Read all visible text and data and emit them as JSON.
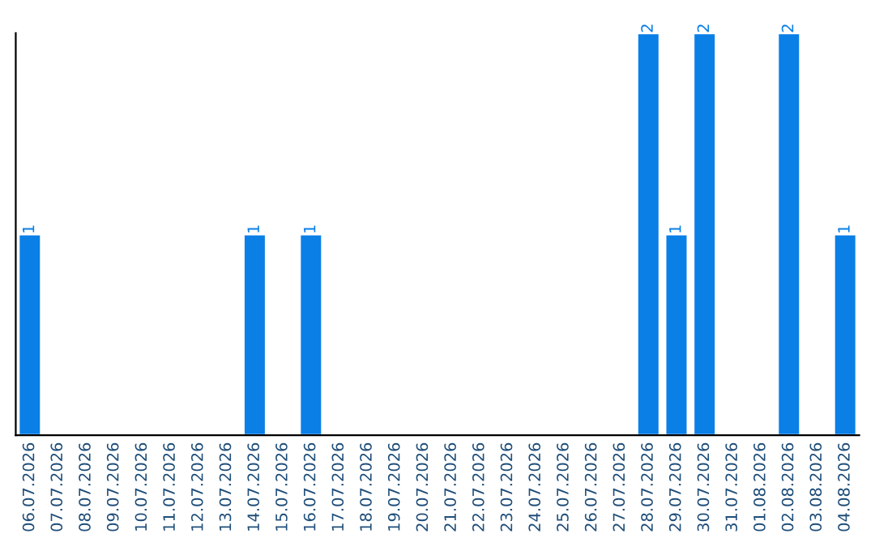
{
  "chart_data": {
    "type": "bar",
    "categories": [
      "06.07.2026",
      "07.07.2026",
      "08.07.2026",
      "09.07.2026",
      "10.07.2026",
      "11.07.2026",
      "12.07.2026",
      "13.07.2026",
      "14.07.2026",
      "15.07.2026",
      "16.07.2026",
      "17.07.2026",
      "18.07.2026",
      "19.07.2026",
      "20.07.2026",
      "21.07.2026",
      "22.07.2026",
      "23.07.2026",
      "24.07.2026",
      "25.07.2026",
      "26.07.2026",
      "27.07.2026",
      "28.07.2026",
      "29.07.2026",
      "30.07.2026",
      "31.07.2026",
      "01.08.2026",
      "02.08.2026",
      "03.08.2026",
      "04.08.2026"
    ],
    "values": [
      1,
      0,
      0,
      0,
      0,
      0,
      0,
      0,
      1,
      0,
      1,
      0,
      0,
      0,
      0,
      0,
      0,
      0,
      0,
      0,
      0,
      0,
      2,
      1,
      2,
      0,
      0,
      2,
      0,
      1
    ],
    "value_labels": [
      "1",
      null,
      null,
      null,
      null,
      null,
      null,
      null,
      "1",
      null,
      "1",
      null,
      null,
      null,
      null,
      null,
      null,
      null,
      null,
      null,
      null,
      null,
      "2",
      "1",
      "2",
      null,
      null,
      "2",
      null,
      "1"
    ],
    "color": "#0a7fe6",
    "grid": false,
    "legend": false
  }
}
